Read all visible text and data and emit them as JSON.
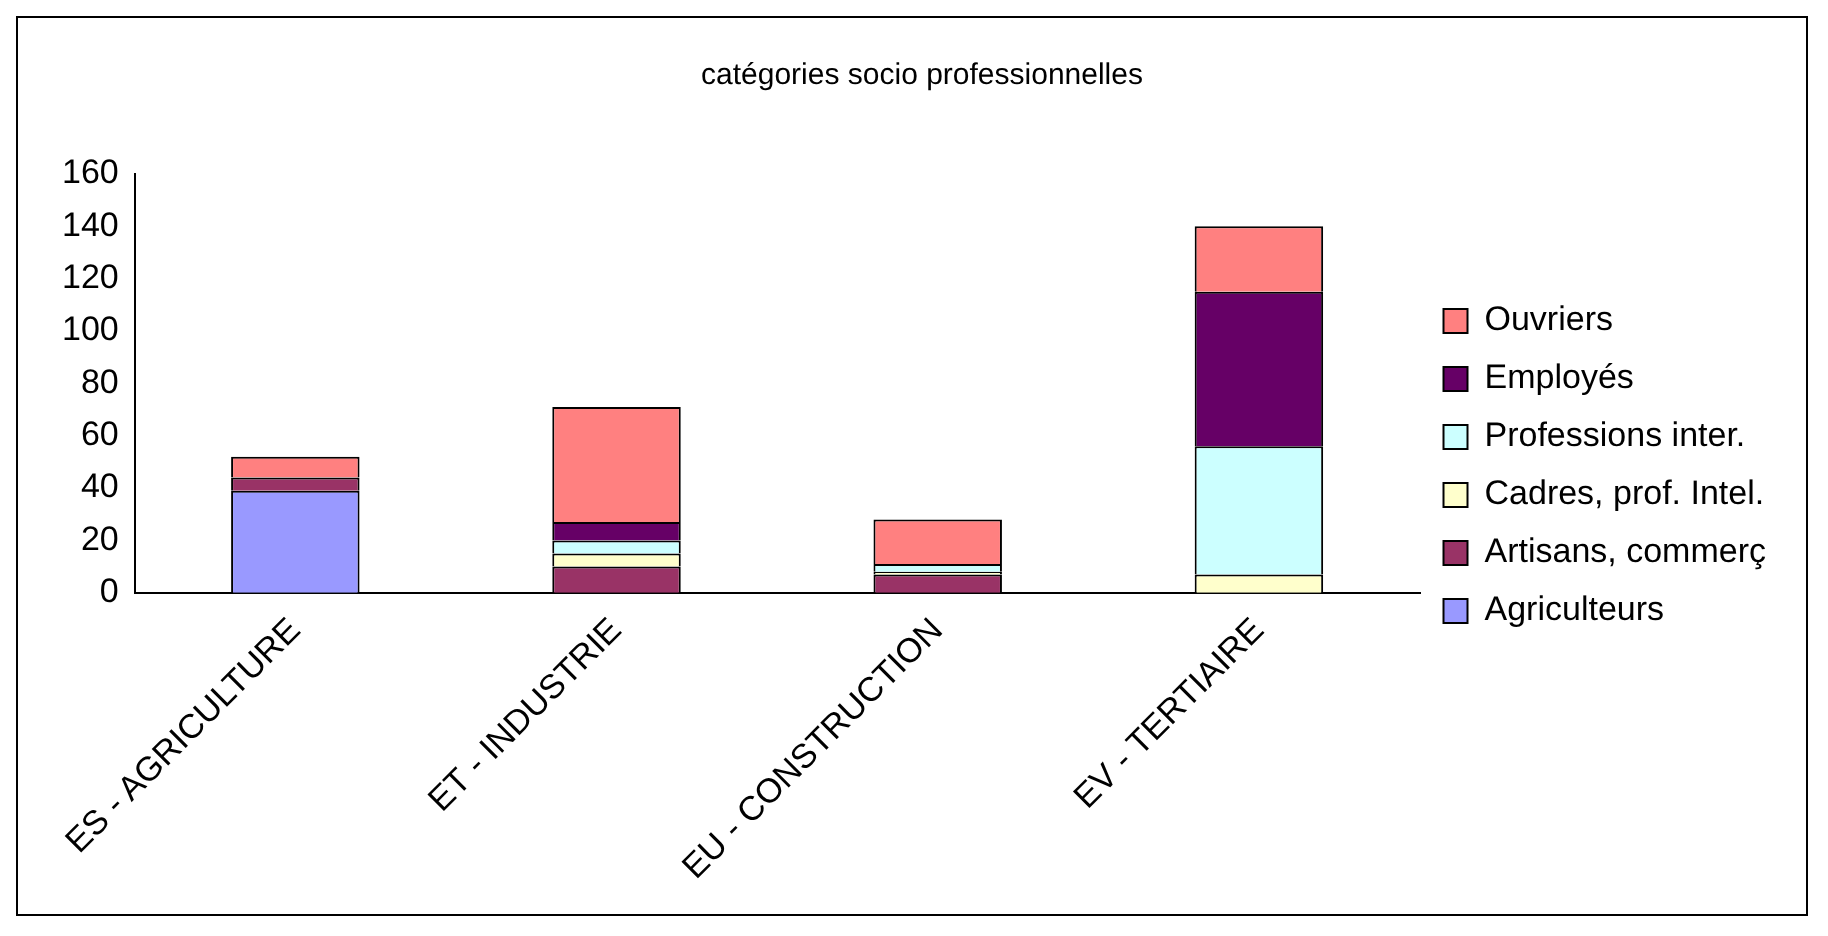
{
  "chart_data": {
    "type": "bar",
    "stacked": true,
    "title": "catégories socio professionnelles",
    "categories": [
      "ES - AGRICULTURE",
      "ET - INDUSTRIE",
      "EU - CONSTRUCTION",
      "EV - TERTIAIRE"
    ],
    "series": [
      {
        "name": "Agriculteurs",
        "color": "#9999ff",
        "values": [
          39,
          0,
          0,
          0
        ]
      },
      {
        "name": "Artisans, commerç",
        "color": "#993366",
        "values": [
          5,
          10,
          7,
          0
        ]
      },
      {
        "name": "Cadres, prof. Intel.",
        "color": "#ffffcc",
        "values": [
          0,
          5,
          1,
          7
        ]
      },
      {
        "name": "Professions inter.",
        "color": "#ccffff",
        "values": [
          0,
          5,
          3,
          49
        ]
      },
      {
        "name": "Employés",
        "color": "#660066",
        "values": [
          0,
          7,
          0,
          59
        ]
      },
      {
        "name": "Ouvriers",
        "color": "#ff8080",
        "values": [
          8,
          44,
          17,
          25
        ]
      }
    ],
    "ylim": [
      0,
      160
    ],
    "yticks": [
      0,
      20,
      40,
      60,
      80,
      100,
      120,
      140,
      160
    ],
    "grid": false,
    "legend": "right"
  }
}
